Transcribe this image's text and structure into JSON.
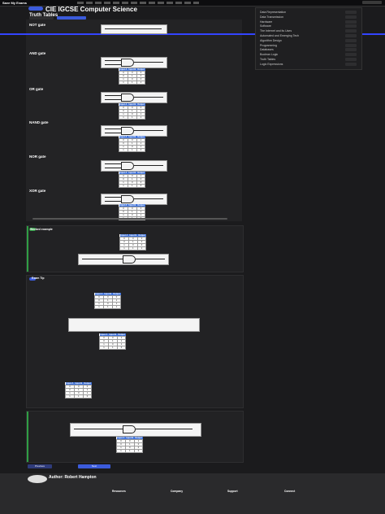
{
  "topbar": {
    "brand": "Save My Exams"
  },
  "header": {
    "course_title": "CIE IGCSE Computer Science",
    "page_title": "Truth Tables"
  },
  "sections": {
    "not_gate": "NOT gate",
    "and_gate": "AND gate",
    "or_gate": "OR gate",
    "nand_gate": "NAND gate",
    "nor_gate": "NOR gate",
    "xor_gate": "XOR gate",
    "worked_example": "Worked example",
    "exam_tip": "Exam Tip"
  },
  "truth_tables": {
    "headers": [
      "Input A",
      "Input B",
      "Output"
    ],
    "and": [
      [
        0,
        0,
        0
      ],
      [
        0,
        1,
        0
      ],
      [
        1,
        0,
        0
      ],
      [
        1,
        1,
        1
      ]
    ],
    "or": [
      [
        0,
        0,
        0
      ],
      [
        0,
        1,
        1
      ],
      [
        1,
        0,
        1
      ],
      [
        1,
        1,
        1
      ]
    ],
    "nand": [
      [
        0,
        0,
        1
      ],
      [
        0,
        1,
        1
      ],
      [
        1,
        0,
        1
      ],
      [
        1,
        1,
        0
      ]
    ],
    "nor": [
      [
        0,
        0,
        1
      ],
      [
        0,
        1,
        0
      ],
      [
        1,
        0,
        0
      ],
      [
        1,
        1,
        0
      ]
    ],
    "xor": [
      [
        0,
        0,
        0
      ],
      [
        0,
        1,
        1
      ],
      [
        1,
        0,
        1
      ],
      [
        1,
        1,
        0
      ]
    ]
  },
  "right_panel": {
    "items": [
      "Data Representation",
      "Data Transmission",
      "Hardware",
      "Software",
      "The Internet and its Uses",
      "Automated and Emerging Tech",
      "Algorithm Design",
      "Programming",
      "Databases",
      "Boolean Logic",
      "Truth Tables",
      "Logic Expressions"
    ]
  },
  "nav": {
    "prev": "Previous",
    "next": "Next"
  },
  "footer": {
    "author_label": "Author: Robert Hampton",
    "columns": [
      "Resources",
      "Company",
      "Support",
      "Connect"
    ]
  },
  "colors": {
    "accent": "#3b5bdb",
    "success": "#2f9e44",
    "table_header": "#3b6fd9"
  }
}
